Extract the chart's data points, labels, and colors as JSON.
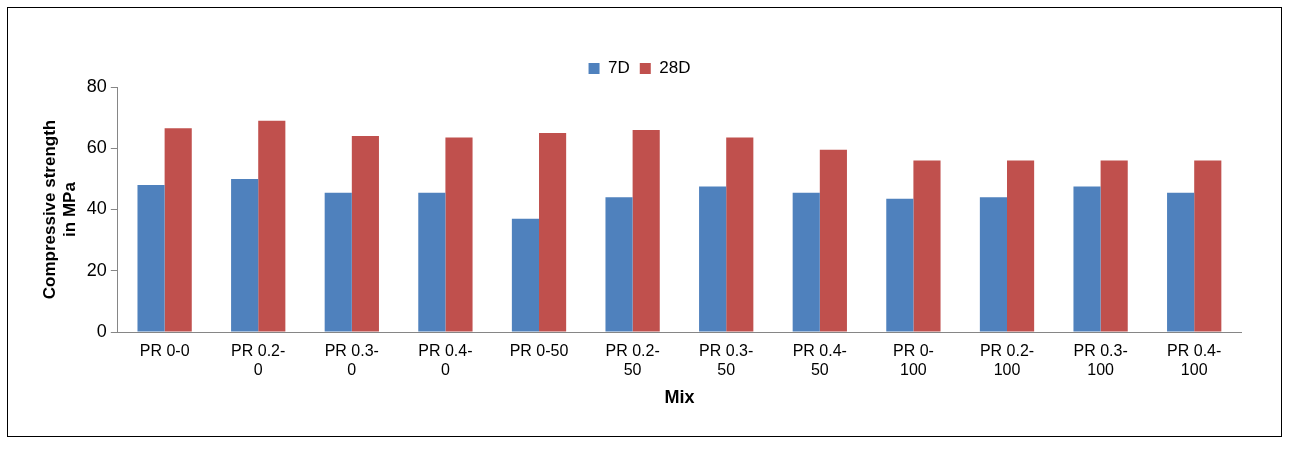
{
  "chart_data": {
    "type": "bar",
    "categories": [
      "PR 0-0",
      "PR 0.2-0",
      "PR 0.3-0",
      "PR 0.4-0",
      "PR 0-50",
      "PR 0.2-50",
      "PR 0.3-50",
      "PR 0.4-50",
      "PR 0-100",
      "PR 0.2-100",
      "PR 0.3-100",
      "PR 0.4-100"
    ],
    "series": [
      {
        "name": "7D",
        "color": "#4f81bd",
        "values": [
          48,
          50,
          45.5,
          45.5,
          37,
          44,
          47.5,
          45.5,
          43.5,
          44,
          47.5,
          45.5
        ]
      },
      {
        "name": "28D",
        "color": "#c0504d",
        "values": [
          66.5,
          69,
          64,
          63.5,
          65,
          66,
          63.5,
          59.5,
          56,
          56,
          56,
          56
        ]
      }
    ],
    "xlabel": "Mix",
    "ylabel": "Compressive strength in MPa",
    "ylim": [
      0,
      80
    ],
    "yticks": [
      0,
      20,
      40,
      60,
      80
    ],
    "legend": "top",
    "grid": false
  }
}
